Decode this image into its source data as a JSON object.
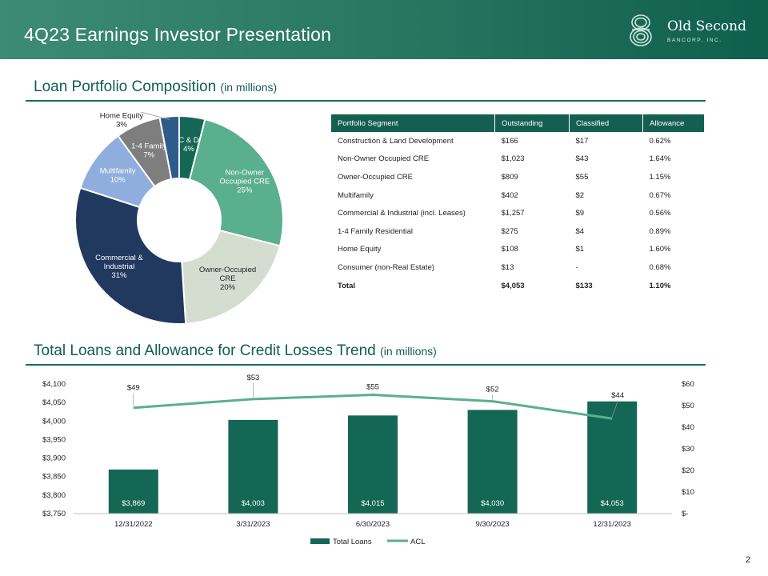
{
  "header": {
    "title": "4Q23 Earnings Investor Presentation"
  },
  "logo": {
    "name": "Old Second",
    "sub": "BANCORP, INC.",
    "icon": "old-second-logo-icon"
  },
  "section1": {
    "title": "Loan Portfolio Composition",
    "unit": "(in millions)"
  },
  "section2": {
    "title": "Total Loans and Allowance for Credit Losses Trend",
    "unit": "(in millions)"
  },
  "table": {
    "headers": [
      "Portfolio Segment",
      "Outstanding",
      "Classified",
      "Allowance"
    ],
    "rows": [
      [
        "Construction & Land Development",
        "$166",
        "$17",
        "0.62%"
      ],
      [
        "Non-Owner Occupied CRE",
        "$1,023",
        "$43",
        "1.64%"
      ],
      [
        "Owner-Occupied CRE",
        "$809",
        "$55",
        "1.15%"
      ],
      [
        "Multifamily",
        "$402",
        "$2",
        "0.67%"
      ],
      [
        "Commercial & Industrial (incl. Leases)",
        "$1,257",
        "$9",
        "0.56%"
      ],
      [
        "1-4 Family Residential",
        "$275",
        "$4",
        "0.89%"
      ],
      [
        "Home Equity",
        "$108",
        "$1",
        "1.60%"
      ],
      [
        "Consumer (non-Real Estate)",
        "$13",
        "-",
        "0.68%"
      ]
    ],
    "total": [
      "Total",
      "$4,053",
      "$133",
      "1.10%"
    ]
  },
  "chart_data": [
    {
      "type": "pie",
      "slices": [
        {
          "label": [
            "C & D",
            "4%"
          ],
          "value": 4,
          "color": "#146655"
        },
        {
          "label": [
            "Non-Owner",
            "Occupied CRE",
            "25%"
          ],
          "value": 25,
          "color": "#5aaf8f"
        },
        {
          "label": [
            "Owner-Occupied",
            "CRE",
            "20%"
          ],
          "value": 20,
          "color": "#d5ddd0"
        },
        {
          "label": [
            "Commercial &",
            "Industrial",
            "31%"
          ],
          "value": 31,
          "color": "#21385f"
        },
        {
          "label": [
            "Multifamily",
            "10%"
          ],
          "value": 10,
          "color": "#8faede"
        },
        {
          "label": [
            "1-4 Family",
            "7%"
          ],
          "value": 7,
          "color": "#7e7e7e"
        },
        {
          "label": [
            "Home Equity",
            "3%"
          ],
          "value": 3,
          "color": "#2e5c8a"
        }
      ]
    },
    {
      "type": "bar",
      "categories": [
        "12/31/2022",
        "3/31/2023",
        "6/30/2023",
        "9/30/2023",
        "12/31/2023"
      ],
      "series": [
        {
          "name": "Total Loans",
          "type": "bar",
          "axis": "left",
          "color": "#146655",
          "values": [
            3869,
            4003,
            4015,
            4030,
            4053
          ],
          "labels": [
            "$3,869",
            "$4,003",
            "$4,015",
            "$4,030",
            "$4,053"
          ]
        },
        {
          "name": "ACL",
          "type": "line",
          "axis": "right",
          "color": "#5aaf8f",
          "values": [
            49,
            53,
            55,
            52,
            44
          ],
          "labels": [
            "$49",
            "$53",
            "$55",
            "$52",
            "$44"
          ]
        }
      ],
      "ylim_left": [
        3750,
        4100
      ],
      "ylim_right": [
        0,
        60
      ],
      "left_ticks": [
        "$3,750",
        "$3,800",
        "$3,850",
        "$3,900",
        "$3,950",
        "$4,000",
        "$4,050",
        "$4,100"
      ],
      "right_ticks": [
        "$-",
        "$10",
        "$20",
        "$30",
        "$40",
        "$50",
        "$60"
      ],
      "legend": "bottom",
      "grid": false
    }
  ],
  "page_number": "2"
}
